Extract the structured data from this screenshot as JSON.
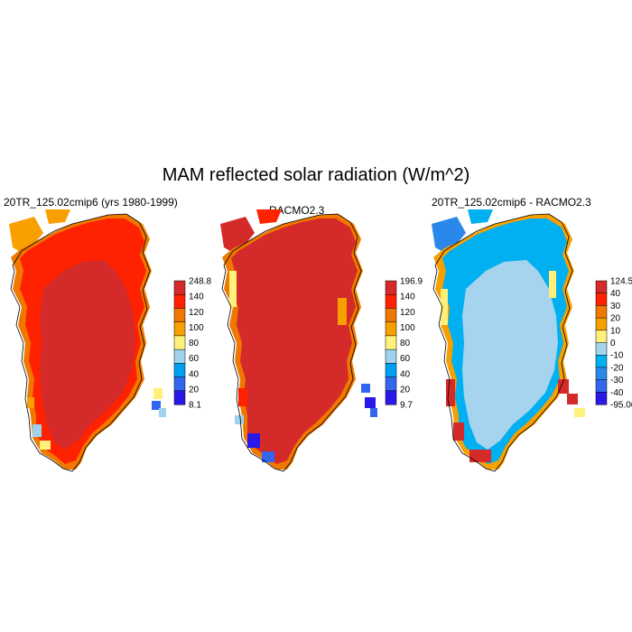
{
  "title": "MAM reflected solar radiation (W/m^2)",
  "panels": [
    {
      "title": "20TR_125.02cmip6 (yrs 1980-1999)",
      "colorbar": {
        "labels": [
          "248.8",
          "140",
          "120",
          "100",
          "80",
          "60",
          "40",
          "20",
          "8.1"
        ],
        "colors": [
          "#d42a2a",
          "#ff2200",
          "#f07800",
          "#f8a000",
          "#fff07a",
          "#9fd2ee",
          "#00a0f0",
          "#3366ee",
          "#2a18e8"
        ]
      }
    },
    {
      "title": "RACMO2.3",
      "colorbar": {
        "labels": [
          "196.9",
          "140",
          "120",
          "100",
          "80",
          "60",
          "40",
          "20",
          "9.7"
        ],
        "colors": [
          "#d42a2a",
          "#ff2200",
          "#f07800",
          "#f8a000",
          "#fff07a",
          "#9fd2ee",
          "#00a0f0",
          "#3366ee",
          "#2a18e8"
        ]
      }
    },
    {
      "title": "20TR_125.02cmip6 - RACMO2.3",
      "colorbar": {
        "labels": [
          "124.52",
          "40",
          "30",
          "20",
          "10",
          "0",
          "-10",
          "-20",
          "-30",
          "-40",
          "-95.06"
        ],
        "colors": [
          "#d42a2a",
          "#ff2200",
          "#f07800",
          "#f8a000",
          "#fff07a",
          "#a6d4ee",
          "#00b0f0",
          "#2a88ea",
          "#3366ee",
          "#2a18e8"
        ]
      }
    }
  ]
}
